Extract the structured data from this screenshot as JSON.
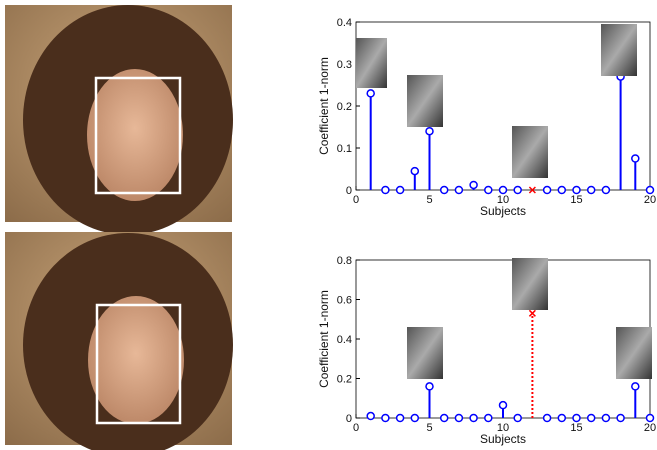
{
  "chart_data": [
    {
      "type": "stem",
      "ylabel": "Coefficient 1-norm",
      "xlabel": "Subjects",
      "x": [
        1,
        2,
        3,
        4,
        5,
        6,
        7,
        8,
        9,
        10,
        11,
        12,
        13,
        14,
        15,
        16,
        17,
        18,
        19,
        20
      ],
      "xlim": [
        0,
        20
      ],
      "ylim": [
        0,
        0.4
      ],
      "xticks": [
        0,
        5,
        10,
        15,
        20
      ],
      "yticks": [
        0,
        0.1,
        0.2,
        0.3,
        0.4
      ],
      "series": [
        {
          "color": "#0000ff",
          "marker": "o",
          "linestyle": "solid",
          "values": [
            0.23,
            0,
            0,
            0.045,
            0.14,
            0,
            0,
            0.012,
            0,
            0,
            0,
            null,
            0,
            0,
            0,
            0,
            0,
            0.27,
            0.075,
            0
          ]
        },
        {
          "color": "#ff0000",
          "marker": "x",
          "linestyle": "dotted",
          "values": [
            null,
            null,
            null,
            null,
            null,
            null,
            null,
            null,
            null,
            null,
            null,
            0,
            null,
            null,
            null,
            null,
            null,
            null,
            null,
            null
          ]
        }
      ]
    },
    {
      "type": "stem",
      "ylabel": "Coefficient 1-norm",
      "xlabel": "Subjects",
      "x": [
        1,
        2,
        3,
        4,
        5,
        6,
        7,
        8,
        9,
        10,
        11,
        12,
        13,
        14,
        15,
        16,
        17,
        18,
        19,
        20
      ],
      "xlim": [
        0,
        20
      ],
      "ylim": [
        0,
        0.8
      ],
      "xticks": [
        0,
        5,
        10,
        15,
        20
      ],
      "yticks": [
        0,
        0.2,
        0.4,
        0.6,
        0.8
      ],
      "series": [
        {
          "color": "#0000ff",
          "marker": "o",
          "linestyle": "solid",
          "values": [
            0.01,
            0,
            0,
            0,
            0.16,
            0,
            0,
            0,
            0,
            0.065,
            0,
            null,
            0,
            0,
            0,
            0,
            0,
            0,
            0.16,
            0
          ]
        },
        {
          "color": "#ff0000",
          "marker": "x",
          "linestyle": "dotted",
          "values": [
            null,
            null,
            null,
            null,
            null,
            null,
            null,
            null,
            null,
            null,
            null,
            0.53,
            null,
            null,
            null,
            null,
            null,
            null,
            null,
            null
          ]
        }
      ]
    }
  ]
}
